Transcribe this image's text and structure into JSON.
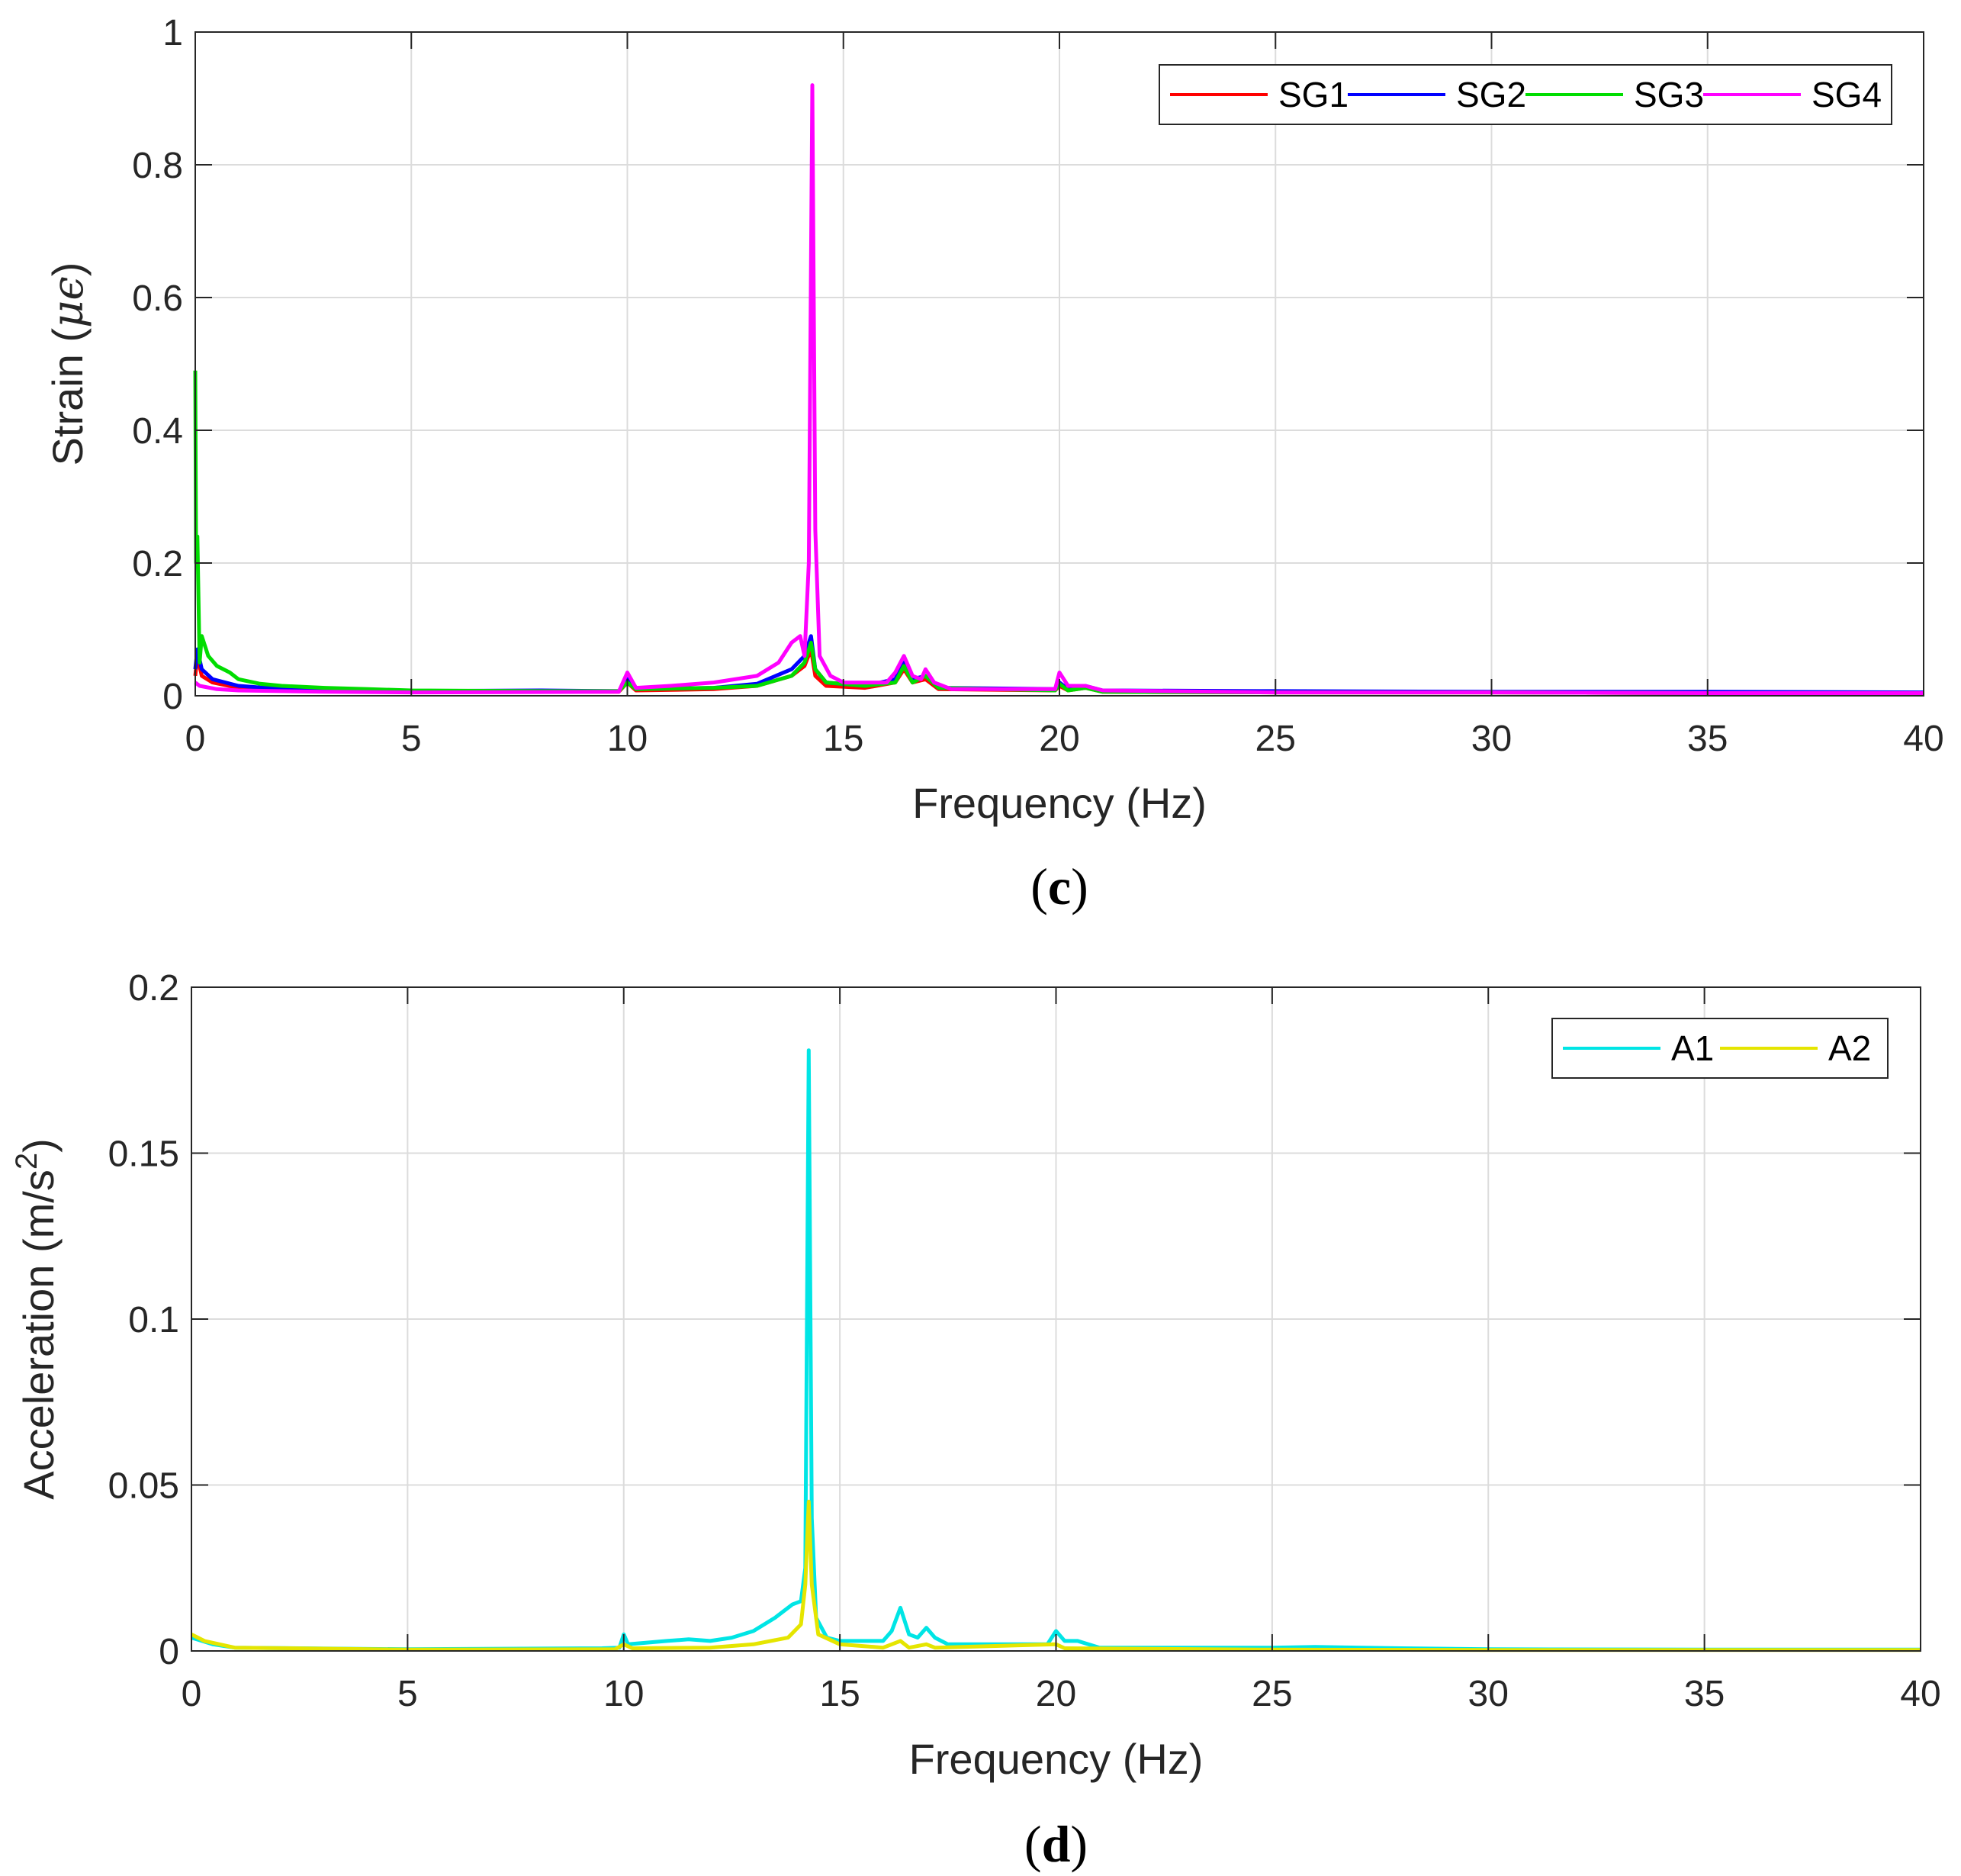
{
  "chart_data": [
    {
      "type": "line",
      "panel_label": "c",
      "xlabel": "Frequency (Hz)",
      "ylabel_prefix": "Strain (",
      "ylabel_symbol": "μϵ",
      "ylabel_suffix": ")",
      "xlim": [
        0,
        40
      ],
      "ylim": [
        0,
        1
      ],
      "xticks": [
        0,
        5,
        10,
        15,
        20,
        25,
        30,
        35,
        40
      ],
      "yticks": [
        0,
        0.2,
        0.4,
        0.6,
        0.8,
        1
      ],
      "xtick_labels": [
        "0",
        "5",
        "10",
        "15",
        "20",
        "25",
        "30",
        "35",
        "40"
      ],
      "ytick_labels": [
        "0",
        "0.2",
        "0.4",
        "0.6",
        "0.8",
        "1"
      ],
      "grid": true,
      "legend_location": "top-right",
      "legend_orientation": "horizontal",
      "series": [
        {
          "name": "SG1",
          "color": "#ff0000",
          "points": [
            [
              0,
              0.03
            ],
            [
              0.05,
              0.06
            ],
            [
              0.15,
              0.03
            ],
            [
              0.4,
              0.02
            ],
            [
              1,
              0.012
            ],
            [
              2,
              0.008
            ],
            [
              3,
              0.007
            ],
            [
              5,
              0.006
            ],
            [
              8,
              0.006
            ],
            [
              9.8,
              0.006
            ],
            [
              10,
              0.02
            ],
            [
              10.2,
              0.008
            ],
            [
              12,
              0.01
            ],
            [
              13,
              0.015
            ],
            [
              13.8,
              0.03
            ],
            [
              14.1,
              0.045
            ],
            [
              14.25,
              0.07
            ],
            [
              14.35,
              0.03
            ],
            [
              14.6,
              0.015
            ],
            [
              15.5,
              0.012
            ],
            [
              16.2,
              0.02
            ],
            [
              16.4,
              0.04
            ],
            [
              16.6,
              0.02
            ],
            [
              16.9,
              0.025
            ],
            [
              17.2,
              0.01
            ],
            [
              19.9,
              0.008
            ],
            [
              20,
              0.015
            ],
            [
              20.2,
              0.008
            ],
            [
              20.6,
              0.012
            ],
            [
              21,
              0.006
            ],
            [
              25,
              0.005
            ],
            [
              30,
              0.005
            ],
            [
              35,
              0.004
            ],
            [
              40,
              0.004
            ]
          ]
        },
        {
          "name": "SG2",
          "color": "#0000ff",
          "points": [
            [
              0,
              0.04
            ],
            [
              0.05,
              0.07
            ],
            [
              0.15,
              0.04
            ],
            [
              0.4,
              0.025
            ],
            [
              1,
              0.015
            ],
            [
              2,
              0.01
            ],
            [
              3,
              0.008
            ],
            [
              5,
              0.007
            ],
            [
              8,
              0.008
            ],
            [
              9.8,
              0.007
            ],
            [
              10,
              0.025
            ],
            [
              10.2,
              0.01
            ],
            [
              12,
              0.012
            ],
            [
              13,
              0.018
            ],
            [
              13.8,
              0.04
            ],
            [
              14.1,
              0.06
            ],
            [
              14.25,
              0.09
            ],
            [
              14.35,
              0.04
            ],
            [
              14.6,
              0.02
            ],
            [
              15.5,
              0.015
            ],
            [
              16.2,
              0.025
            ],
            [
              16.4,
              0.05
            ],
            [
              16.6,
              0.025
            ],
            [
              16.9,
              0.03
            ],
            [
              17.2,
              0.012
            ],
            [
              19.9,
              0.01
            ],
            [
              20,
              0.02
            ],
            [
              20.2,
              0.01
            ],
            [
              20.6,
              0.015
            ],
            [
              21,
              0.008
            ],
            [
              25,
              0.007
            ],
            [
              30,
              0.006
            ],
            [
              35,
              0.006
            ],
            [
              40,
              0.005
            ]
          ]
        },
        {
          "name": "SG3",
          "color": "#00dd00",
          "points": [
            [
              0,
              0.49
            ],
            [
              0.02,
              0.2
            ],
            [
              0.05,
              0.24
            ],
            [
              0.1,
              0.05
            ],
            [
              0.15,
              0.09
            ],
            [
              0.3,
              0.06
            ],
            [
              0.5,
              0.045
            ],
            [
              0.8,
              0.035
            ],
            [
              1,
              0.025
            ],
            [
              1.5,
              0.018
            ],
            [
              2,
              0.015
            ],
            [
              3,
              0.012
            ],
            [
              4,
              0.01
            ],
            [
              5,
              0.008
            ],
            [
              8,
              0.007
            ],
            [
              9.8,
              0.007
            ],
            [
              10,
              0.02
            ],
            [
              10.2,
              0.01
            ],
            [
              12,
              0.012
            ],
            [
              13,
              0.015
            ],
            [
              13.8,
              0.03
            ],
            [
              14.1,
              0.05
            ],
            [
              14.25,
              0.08
            ],
            [
              14.35,
              0.04
            ],
            [
              14.6,
              0.02
            ],
            [
              15.5,
              0.015
            ],
            [
              16.2,
              0.02
            ],
            [
              16.4,
              0.045
            ],
            [
              16.6,
              0.02
            ],
            [
              16.9,
              0.03
            ],
            [
              17.2,
              0.012
            ],
            [
              19.9,
              0.008
            ],
            [
              20,
              0.018
            ],
            [
              20.2,
              0.008
            ],
            [
              20.6,
              0.012
            ],
            [
              21,
              0.006
            ],
            [
              25,
              0.005
            ],
            [
              30,
              0.005
            ],
            [
              35,
              0.004
            ],
            [
              40,
              0.004
            ]
          ]
        },
        {
          "name": "SG4",
          "color": "#ff00ff",
          "points": [
            [
              0,
              0.02
            ],
            [
              0.1,
              0.015
            ],
            [
              0.5,
              0.01
            ],
            [
              1,
              0.008
            ],
            [
              3,
              0.006
            ],
            [
              5,
              0.005
            ],
            [
              9.8,
              0.006
            ],
            [
              10,
              0.035
            ],
            [
              10.2,
              0.012
            ],
            [
              11,
              0.015
            ],
            [
              12,
              0.02
            ],
            [
              13,
              0.03
            ],
            [
              13.5,
              0.05
            ],
            [
              13.8,
              0.08
            ],
            [
              14,
              0.09
            ],
            [
              14.1,
              0.06
            ],
            [
              14.2,
              0.2
            ],
            [
              14.28,
              0.92
            ],
            [
              14.35,
              0.25
            ],
            [
              14.45,
              0.06
            ],
            [
              14.7,
              0.03
            ],
            [
              15,
              0.02
            ],
            [
              16,
              0.02
            ],
            [
              16.2,
              0.035
            ],
            [
              16.4,
              0.06
            ],
            [
              16.6,
              0.03
            ],
            [
              16.8,
              0.025
            ],
            [
              16.9,
              0.04
            ],
            [
              17.1,
              0.02
            ],
            [
              17.5,
              0.01
            ],
            [
              19.9,
              0.01
            ],
            [
              20,
              0.035
            ],
            [
              20.2,
              0.015
            ],
            [
              20.6,
              0.015
            ],
            [
              21,
              0.008
            ],
            [
              25,
              0.005
            ],
            [
              30,
              0.005
            ],
            [
              35,
              0.004
            ],
            [
              40,
              0.004
            ]
          ]
        }
      ]
    },
    {
      "type": "line",
      "panel_label": "d",
      "xlabel": "Frequency (Hz)",
      "ylabel_prefix": "Acceleration (m/s",
      "ylabel_sup": "2",
      "ylabel_suffix": ")",
      "xlim": [
        0,
        40
      ],
      "ylim": [
        0,
        0.2
      ],
      "xticks": [
        0,
        5,
        10,
        15,
        20,
        25,
        30,
        35,
        40
      ],
      "yticks": [
        0,
        0.05,
        0.1,
        0.15,
        0.2
      ],
      "xtick_labels": [
        "0",
        "5",
        "10",
        "15",
        "20",
        "25",
        "30",
        "35",
        "40"
      ],
      "ytick_labels": [
        "0",
        "0.05",
        "0.1",
        "0.15",
        "0.2"
      ],
      "grid": true,
      "legend_location": "top-right",
      "legend_orientation": "horizontal",
      "series": [
        {
          "name": "A1",
          "color": "#00e5e5",
          "points": [
            [
              0,
              0.004
            ],
            [
              0.5,
              0.002
            ],
            [
              1,
              0.001
            ],
            [
              5,
              0.0005
            ],
            [
              9.5,
              0.0008
            ],
            [
              9.9,
              0.001
            ],
            [
              10,
              0.005
            ],
            [
              10.1,
              0.002
            ],
            [
              11,
              0.003
            ],
            [
              11.5,
              0.0035
            ],
            [
              12,
              0.003
            ],
            [
              12.5,
              0.004
            ],
            [
              13,
              0.006
            ],
            [
              13.5,
              0.01
            ],
            [
              13.9,
              0.014
            ],
            [
              14.1,
              0.015
            ],
            [
              14.2,
              0.025
            ],
            [
              14.28,
              0.181
            ],
            [
              14.35,
              0.04
            ],
            [
              14.45,
              0.01
            ],
            [
              14.7,
              0.004
            ],
            [
              15,
              0.003
            ],
            [
              16,
              0.003
            ],
            [
              16.2,
              0.006
            ],
            [
              16.4,
              0.013
            ],
            [
              16.6,
              0.005
            ],
            [
              16.8,
              0.004
            ],
            [
              17,
              0.007
            ],
            [
              17.2,
              0.004
            ],
            [
              17.5,
              0.002
            ],
            [
              19.8,
              0.002
            ],
            [
              20,
              0.006
            ],
            [
              20.2,
              0.003
            ],
            [
              20.5,
              0.003
            ],
            [
              21,
              0.001
            ],
            [
              25,
              0.001
            ],
            [
              26,
              0.0012
            ],
            [
              28,
              0.0008
            ],
            [
              30,
              0.0005
            ],
            [
              35,
              0.0004
            ],
            [
              40,
              0.0004
            ]
          ]
        },
        {
          "name": "A2",
          "color": "#e5e500",
          "points": [
            [
              0,
              0.005
            ],
            [
              0.3,
              0.003
            ],
            [
              1,
              0.001
            ],
            [
              5,
              0.0004
            ],
            [
              9.8,
              0.0005
            ],
            [
              10,
              0.002
            ],
            [
              10.2,
              0.0008
            ],
            [
              12,
              0.001
            ],
            [
              13,
              0.002
            ],
            [
              13.8,
              0.004
            ],
            [
              14.1,
              0.008
            ],
            [
              14.2,
              0.02
            ],
            [
              14.28,
              0.045
            ],
            [
              14.35,
              0.02
            ],
            [
              14.5,
              0.005
            ],
            [
              15,
              0.002
            ],
            [
              16,
              0.001
            ],
            [
              16.4,
              0.003
            ],
            [
              16.6,
              0.001
            ],
            [
              17,
              0.002
            ],
            [
              17.2,
              0.001
            ],
            [
              20,
              0.002
            ],
            [
              20.2,
              0.0008
            ],
            [
              25,
              0.0004
            ],
            [
              30,
              0.0003
            ],
            [
              35,
              0.0003
            ],
            [
              40,
              0.0003
            ]
          ]
        }
      ]
    }
  ]
}
